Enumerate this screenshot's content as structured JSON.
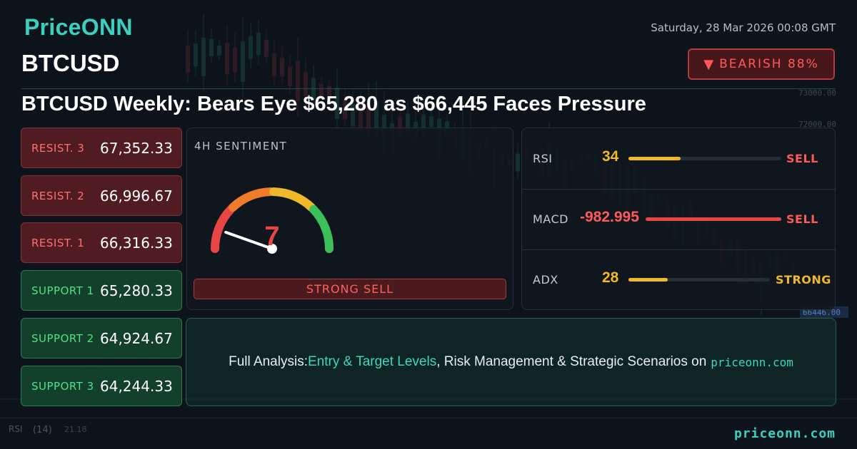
{
  "brand": "PriceONN",
  "datetime": "Saturday, 28 Mar 2026 00:08 GMT",
  "symbol": "BTCUSD",
  "bias": {
    "icon": "down-triangle-icon",
    "arrow": "▼",
    "label": "BEARISH 88%",
    "color": "#ff5a5a"
  },
  "headline": "BTCUSD Weekly: Bears Eye $65,280 as $66,445 Faces Pressure",
  "levels": [
    {
      "label": "RESIST. 3",
      "value": "67,352.33",
      "kind": "resistance"
    },
    {
      "label": "RESIST. 2",
      "value": "66,996.67",
      "kind": "resistance"
    },
    {
      "label": "RESIST. 1",
      "value": "66,316.33",
      "kind": "resistance"
    },
    {
      "label": "SUPPORT 1",
      "value": "65,280.33",
      "kind": "support"
    },
    {
      "label": "SUPPORT 2",
      "value": "64,924.67",
      "kind": "support"
    },
    {
      "label": "SUPPORT 3",
      "value": "64,244.33",
      "kind": "support"
    }
  ],
  "sentiment": {
    "title": "4H SENTIMENT",
    "score": "7",
    "score_value": 7,
    "scale_max": 100,
    "verdict": "STRONG SELL",
    "colors": [
      "#e84545",
      "#f07b2a",
      "#f0b92a",
      "#3cc05a"
    ]
  },
  "indicators": [
    {
      "name": "RSI",
      "value": "34",
      "level": 0.34,
      "signal": "SELL",
      "value_color": "#f0b92a",
      "bar_color": "#f0b92a",
      "signal_color": "#ff5a5a"
    },
    {
      "name": "MACD",
      "value": "-982.995",
      "level": 1.0,
      "signal": "SELL",
      "value_color": "#ff5a5a",
      "bar_color": "#e84545",
      "signal_color": "#ff5a5a"
    },
    {
      "name": "ADX",
      "value": "28",
      "level": 0.28,
      "signal": "STRONG",
      "value_color": "#f0b92a",
      "bar_color": "#f0b92a",
      "signal_color": "#f0b92a"
    }
  ],
  "cta": {
    "prefix": "Full Analysis: ",
    "highlight": "Entry & Target Levels",
    "middle": ", Risk Management & Strategic Scenarios on",
    "domain": "priceonn.com"
  },
  "footer_url": "priceonn.com",
  "background": {
    "price_labels": [
      "73000.00",
      "72000.00",
      "66446.00"
    ],
    "rsi_label": "RSI",
    "rsi_period": "(14)",
    "rsi_value": "21.18"
  }
}
